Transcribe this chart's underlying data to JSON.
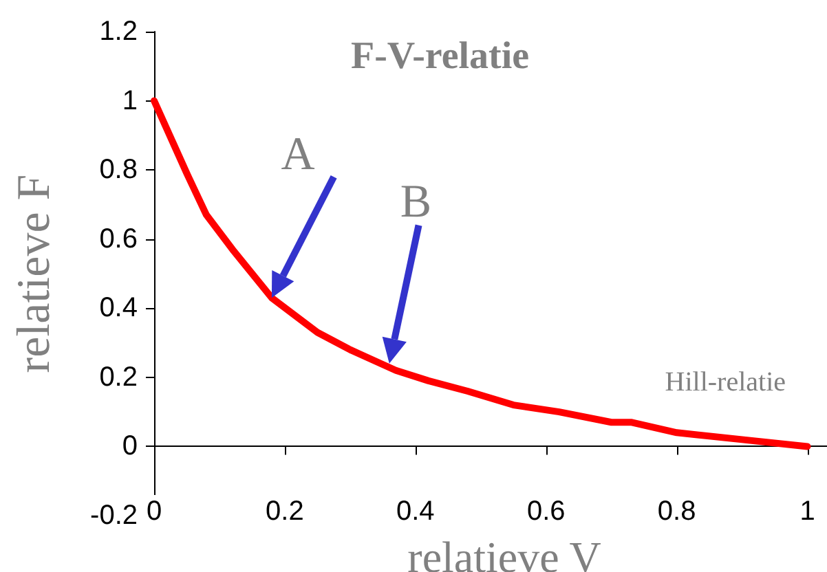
{
  "chart_data": {
    "type": "line",
    "title": "F-V-relatie",
    "xlabel": "relatieve V",
    "ylabel": "relatieve F",
    "x": [
      0,
      0.05,
      0.08,
      0.12,
      0.18,
      0.25,
      0.3,
      0.37,
      0.42,
      0.48,
      0.55,
      0.62,
      0.7,
      0.73,
      0.8,
      0.9,
      1
    ],
    "series": [
      {
        "color": "#ff0000",
        "values": [
          1,
          0.79,
          0.67,
          0.57,
          0.43,
          0.33,
          0.28,
          0.22,
          0.19,
          0.16,
          0.12,
          0.1,
          0.07,
          0.07,
          0.04,
          0.02,
          0
        ]
      }
    ],
    "annotations": [
      {
        "text": "A",
        "x": 0.18,
        "y": 0.43
      },
      {
        "text": "B",
        "x": 0.36,
        "y": 0.24
      },
      "Hill-relatie"
    ],
    "xlim": [
      0,
      1.03
    ],
    "xticks": [
      0,
      0.2,
      0.4,
      0.6,
      0.8,
      1
    ],
    "ylim": [
      -0.2,
      1.2
    ],
    "yticks": [
      -0.2,
      0,
      0.2,
      0.4,
      0.6,
      0.8,
      1,
      1.2
    ],
    "grid": false,
    "marker": "none",
    "line_style": "solid"
  }
}
